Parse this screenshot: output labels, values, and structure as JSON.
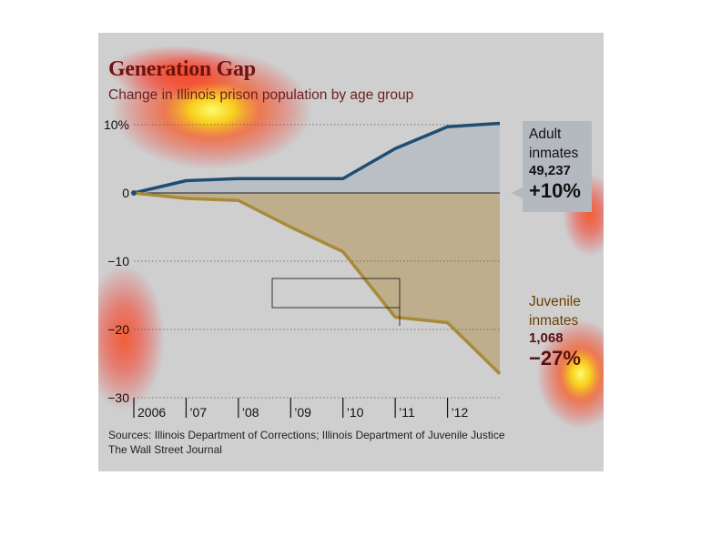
{
  "header": {
    "title": "Generation Gap",
    "subtitle": "Change in Illinois prison population by age group"
  },
  "footer": {
    "sources": "Sources: Illinois Department of Corrections; Illinois Department of Juvenile Justice",
    "publisher": "The Wall Street Journal"
  },
  "callouts": {
    "adult": {
      "label_line1": "Adult",
      "label_line2": "inmates",
      "count": "49,237",
      "change": "+10%"
    },
    "juvenile": {
      "label_line1": "Juvenile",
      "label_line2": "inmates",
      "count": "1,068",
      "change": "−27%"
    }
  },
  "colors": {
    "adult_line": "#1f4e72",
    "adult_fill": "#aab2bd",
    "juvenile_line": "#a88a3a",
    "juvenile_fill": "#b9a57a",
    "title": "#6e1212"
  },
  "chart_data": {
    "type": "line",
    "title": "Generation Gap",
    "subtitle": "Change in Illinois prison population by age group",
    "x": [
      2006,
      2007,
      2008,
      2009,
      2010,
      2011,
      2012,
      2013
    ],
    "x_tick_labels": [
      "2006",
      "’07",
      "’08",
      "’09",
      "’10",
      "’11",
      "’12"
    ],
    "y_ticks": [
      10,
      0,
      -10,
      -20,
      -30
    ],
    "y_tick_labels": [
      "10%",
      "0",
      "−10",
      "−20",
      "−30"
    ],
    "ylim": [
      -30,
      10
    ],
    "grid": "dotted horizontal",
    "series": [
      {
        "name": "Adult inmates",
        "values": [
          0,
          1.8,
          2.1,
          2.1,
          2.1,
          6.5,
          9.7,
          10.2
        ]
      },
      {
        "name": "Juvenile inmates",
        "values": [
          0,
          -0.8,
          -1.1,
          -5.0,
          -8.6,
          -18.2,
          -19.0,
          -26.5
        ]
      }
    ]
  }
}
